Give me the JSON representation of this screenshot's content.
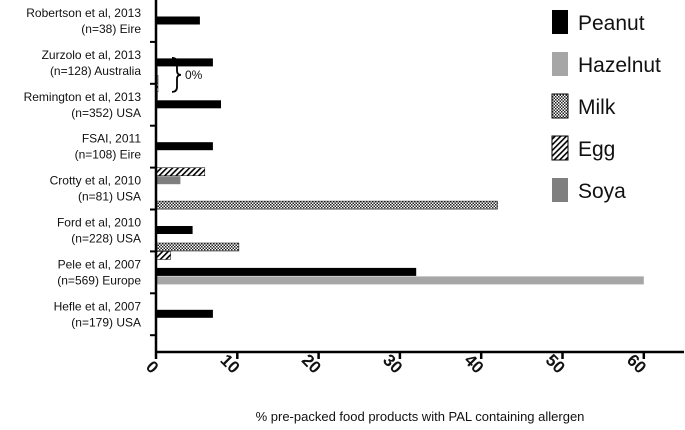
{
  "chart_data": {
    "type": "bar",
    "orientation": "horizontal",
    "categories": [
      {
        "line1": "Robertson et al, 2013",
        "line2": "(n=38) Eire"
      },
      {
        "line1": "Zurzolo et al, 2013",
        "line2": "(n=128) Australia"
      },
      {
        "line1": "Remington et al, 2013",
        "line2": "(n=352) USA"
      },
      {
        "line1": "FSAI, 2011",
        "line2": "(n=108) Eire"
      },
      {
        "line1": "Crotty et al, 2010",
        "line2": "(n=81) USA"
      },
      {
        "line1": "Ford et al, 2010",
        "line2": "(n=228) USA"
      },
      {
        "line1": "Pele et al, 2007",
        "line2": "(n=569) Europe"
      },
      {
        "line1": "Hefle et al, 2007",
        "line2": "(n=179) USA"
      }
    ],
    "series": [
      {
        "name": "Peanut",
        "color": "#000000",
        "pattern": "solid",
        "values": [
          5.4,
          7,
          8,
          7,
          null,
          4.5,
          32,
          7
        ]
      },
      {
        "name": "Hazelnut",
        "color": "#a6a6a6",
        "pattern": "solid",
        "values": [
          null,
          0,
          null,
          null,
          null,
          null,
          60,
          null
        ]
      },
      {
        "name": "Milk",
        "color": "#555555",
        "pattern": "crosshatch",
        "values": [
          null,
          0,
          null,
          null,
          42,
          10.2,
          null,
          null
        ]
      },
      {
        "name": "Egg",
        "color": "#000000",
        "pattern": "diagonal",
        "values": [
          null,
          0,
          null,
          6,
          null,
          1.8,
          null,
          null
        ]
      },
      {
        "name": "Soya",
        "color": "#7f7f7f",
        "pattern": "solid",
        "values": [
          null,
          0,
          null,
          3,
          null,
          null,
          null,
          null
        ]
      }
    ],
    "xlim": [
      0,
      65
    ],
    "xticks": [
      0,
      10,
      20,
      30,
      40,
      50,
      60
    ],
    "xlabel": "% pre-packed food products with PAL containing allergen",
    "ylabel": "",
    "grid": false,
    "legend_position": "top-right",
    "annotations": [
      {
        "category_index": 1,
        "text": "0%"
      }
    ]
  }
}
